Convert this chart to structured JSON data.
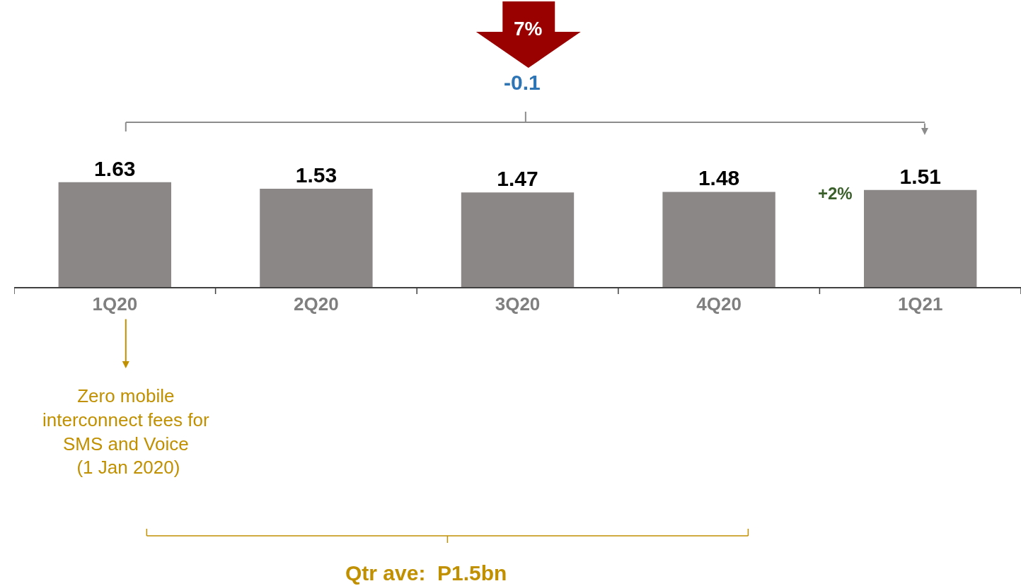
{
  "chart_data": {
    "type": "bar",
    "categories": [
      "1Q20",
      "2Q20",
      "3Q20",
      "4Q20",
      "1Q21"
    ],
    "values": [
      1.63,
      1.53,
      1.47,
      1.48,
      1.51
    ],
    "color": "#8c8787",
    "data_labels": true,
    "legend": false,
    "tick_labels": "x",
    "annotations": [
      "7%",
      "-0.1",
      "+2%",
      "Zero mobile\ninterconnect fees for\nSMS and Voice\n (1 Jan 2020)",
      "Qtr ave:  P1.5bn"
    ]
  }
}
